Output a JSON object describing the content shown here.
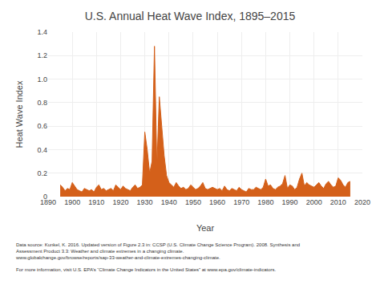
{
  "chart_data": {
    "type": "area",
    "title": "U.S. Annual Heat Wave Index, 1895–2015",
    "xlabel": "Year",
    "ylabel": "Heat Wave Index",
    "color": "#d4601a",
    "grid": true,
    "xlim": [
      1890,
      2020
    ],
    "xticks": [
      1890,
      1900,
      1910,
      1920,
      1930,
      1940,
      1950,
      1960,
      1970,
      1980,
      1990,
      2000,
      2010,
      2020
    ],
    "ylim": [
      0,
      1.4
    ],
    "yticks": [
      0,
      0.2,
      0.4,
      0.6,
      0.8,
      {
        "value": 1.0,
        "label": "1.0"
      },
      1.2,
      1.4
    ],
    "annotations": [
      "Data source: Kunkel, K. 2016. Updated version of Figure 2.3 in: CCSP (U.S. Climate Change Science Program). 2008. Synthesis and",
      "Assessment Product 3.3: Weather and climate extremes in a changing climate.",
      "www.globalchange.gov/browse/reports/sap-33-weather-and-climate-extremes-changing-climate.",
      "For more information, visit U.S. EPA’s “Climate Change Indicators in the United States” at www.epa.gov/climate-indicators."
    ],
    "x": [
      1895,
      1896,
      1897,
      1898,
      1899,
      1900,
      1901,
      1902,
      1903,
      1904,
      1905,
      1906,
      1907,
      1908,
      1909,
      1910,
      1911,
      1912,
      1913,
      1914,
      1915,
      1916,
      1917,
      1918,
      1919,
      1920,
      1921,
      1922,
      1923,
      1924,
      1925,
      1926,
      1927,
      1928,
      1929,
      1930,
      1931,
      1932,
      1933,
      1934,
      1935,
      1936,
      1937,
      1938,
      1939,
      1940,
      1941,
      1942,
      1943,
      1944,
      1945,
      1946,
      1947,
      1948,
      1949,
      1950,
      1951,
      1952,
      1953,
      1954,
      1955,
      1956,
      1957,
      1958,
      1959,
      1960,
      1961,
      1962,
      1963,
      1964,
      1965,
      1966,
      1967,
      1968,
      1969,
      1970,
      1971,
      1972,
      1973,
      1974,
      1975,
      1976,
      1977,
      1978,
      1979,
      1980,
      1981,
      1982,
      1983,
      1984,
      1985,
      1986,
      1987,
      1988,
      1989,
      1990,
      1991,
      1992,
      1993,
      1994,
      1995,
      1996,
      1997,
      1998,
      1999,
      2000,
      2001,
      2002,
      2003,
      2004,
      2005,
      2006,
      2007,
      2008,
      2009,
      2010,
      2011,
      2012,
      2013,
      2014,
      2015
    ],
    "values": [
      0.1,
      0.08,
      0.05,
      0.07,
      0.06,
      0.12,
      0.09,
      0.06,
      0.05,
      0.04,
      0.07,
      0.06,
      0.05,
      0.06,
      0.04,
      0.08,
      0.1,
      0.06,
      0.07,
      0.05,
      0.06,
      0.07,
      0.05,
      0.1,
      0.08,
      0.06,
      0.09,
      0.07,
      0.06,
      0.05,
      0.08,
      0.1,
      0.07,
      0.08,
      0.1,
      0.55,
      0.4,
      0.2,
      0.3,
      1.28,
      0.25,
      0.85,
      0.6,
      0.35,
      0.18,
      0.12,
      0.1,
      0.08,
      0.12,
      0.09,
      0.07,
      0.08,
      0.06,
      0.07,
      0.1,
      0.08,
      0.06,
      0.07,
      0.09,
      0.12,
      0.07,
      0.06,
      0.07,
      0.08,
      0.07,
      0.06,
      0.07,
      0.05,
      0.09,
      0.06,
      0.05,
      0.07,
      0.06,
      0.05,
      0.08,
      0.06,
      0.05,
      0.04,
      0.07,
      0.06,
      0.06,
      0.08,
      0.07,
      0.06,
      0.08,
      0.15,
      0.09,
      0.1,
      0.07,
      0.06,
      0.08,
      0.09,
      0.11,
      0.18,
      0.07,
      0.1,
      0.09,
      0.06,
      0.08,
      0.15,
      0.2,
      0.09,
      0.12,
      0.1,
      0.09,
      0.08,
      0.1,
      0.12,
      0.09,
      0.07,
      0.11,
      0.13,
      0.1,
      0.08,
      0.09,
      0.16,
      0.14,
      0.1,
      0.08,
      0.12,
      0.13
    ]
  }
}
